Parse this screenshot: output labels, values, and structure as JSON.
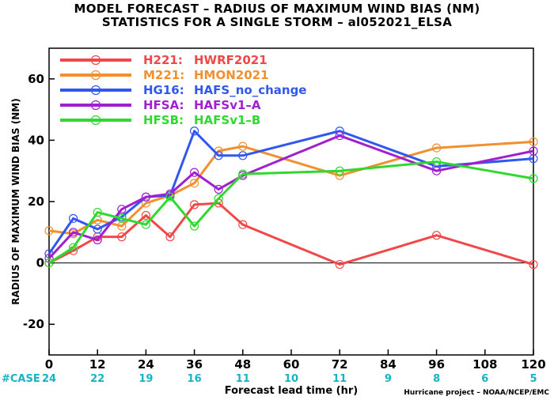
{
  "title": "MODEL FORECAST – RADIUS OF MAXIMUM WIND BIAS (NM)",
  "subtitle": "STATISTICS FOR A SINGLE STORM – al052021_ELSA",
  "credit": "Hurricane project – NOAA/NCEP/EMC",
  "colors": {
    "case_text": "#17b3c4",
    "zero_line": "#000000"
  },
  "chart_data": {
    "type": "line",
    "title": "MODEL FORECAST – RADIUS OF MAXIMUM WIND BIAS (NM)",
    "subtitle": "STATISTICS FOR A SINGLE STORM – al052021_ELSA",
    "xlabel": "Forecast lead time (hr)",
    "ylabel": "RADIUS OF MAXIMUM WIND BIAS (NM)",
    "xlim": [
      0,
      120
    ],
    "ylim": [
      -30,
      70
    ],
    "xticks": [
      0,
      12,
      24,
      36,
      48,
      60,
      72,
      84,
      96,
      108,
      120
    ],
    "yticks": [
      -20,
      0,
      20,
      40,
      60
    ],
    "grid": false,
    "legend_position": "top-left",
    "cases_label": "#CASE",
    "cases": [
      {
        "x": 0,
        "n": "24"
      },
      {
        "x": 12,
        "n": "22"
      },
      {
        "x": 24,
        "n": "19"
      },
      {
        "x": 36,
        "n": "16"
      },
      {
        "x": 48,
        "n": "11"
      },
      {
        "x": 60,
        "n": "10"
      },
      {
        "x": 72,
        "n": "11"
      },
      {
        "x": 84,
        "n": "9"
      },
      {
        "x": 96,
        "n": "8"
      },
      {
        "x": 108,
        "n": "6"
      },
      {
        "x": 120,
        "n": "5"
      }
    ],
    "series": [
      {
        "name": "H221:",
        "label": "HWRF2021",
        "color": "#f04848",
        "x": [
          0,
          6,
          12,
          18,
          24,
          30,
          36,
          42,
          48,
          72,
          96,
          120
        ],
        "y": [
          0,
          4,
          8.5,
          8.5,
          15.5,
          8.5,
          19,
          19.5,
          12.5,
          -0.5,
          9,
          -0.5
        ]
      },
      {
        "name": "M221:",
        "label": "HMON2021",
        "color": "#f09030",
        "x": [
          0,
          6,
          12,
          18,
          24,
          30,
          36,
          42,
          48,
          72,
          96,
          120
        ],
        "y": [
          10.5,
          9.5,
          14,
          12,
          19.5,
          22,
          26,
          36.5,
          38,
          28.5,
          37.5,
          39.5
        ]
      },
      {
        "name": "HG16:",
        "label": "HAFS_no_change",
        "color": "#3058f0",
        "x": [
          0,
          6,
          12,
          18,
          24,
          30,
          36,
          42,
          48,
          72,
          96,
          120
        ],
        "y": [
          3,
          14.5,
          11,
          15,
          21.5,
          22,
          43,
          35,
          35,
          43,
          31.5,
          34
        ]
      },
      {
        "name": "HFSA:",
        "label": "HAFSv1–A",
        "color": "#a020d0",
        "x": [
          0,
          6,
          12,
          18,
          24,
          30,
          36,
          42,
          48,
          72,
          96,
          120
        ],
        "y": [
          1.5,
          10,
          7.5,
          17.5,
          21.5,
          22.5,
          29.5,
          24,
          28.5,
          41.5,
          30,
          36.5
        ]
      },
      {
        "name": "HFSB:",
        "label": "HAFSv1–B",
        "color": "#30d830",
        "x": [
          0,
          6,
          12,
          18,
          24,
          30,
          36,
          42,
          48,
          72,
          96,
          120
        ],
        "y": [
          0,
          5,
          16.5,
          14.5,
          12.5,
          21.5,
          12,
          21,
          29,
          30,
          33,
          27.5
        ]
      }
    ]
  }
}
